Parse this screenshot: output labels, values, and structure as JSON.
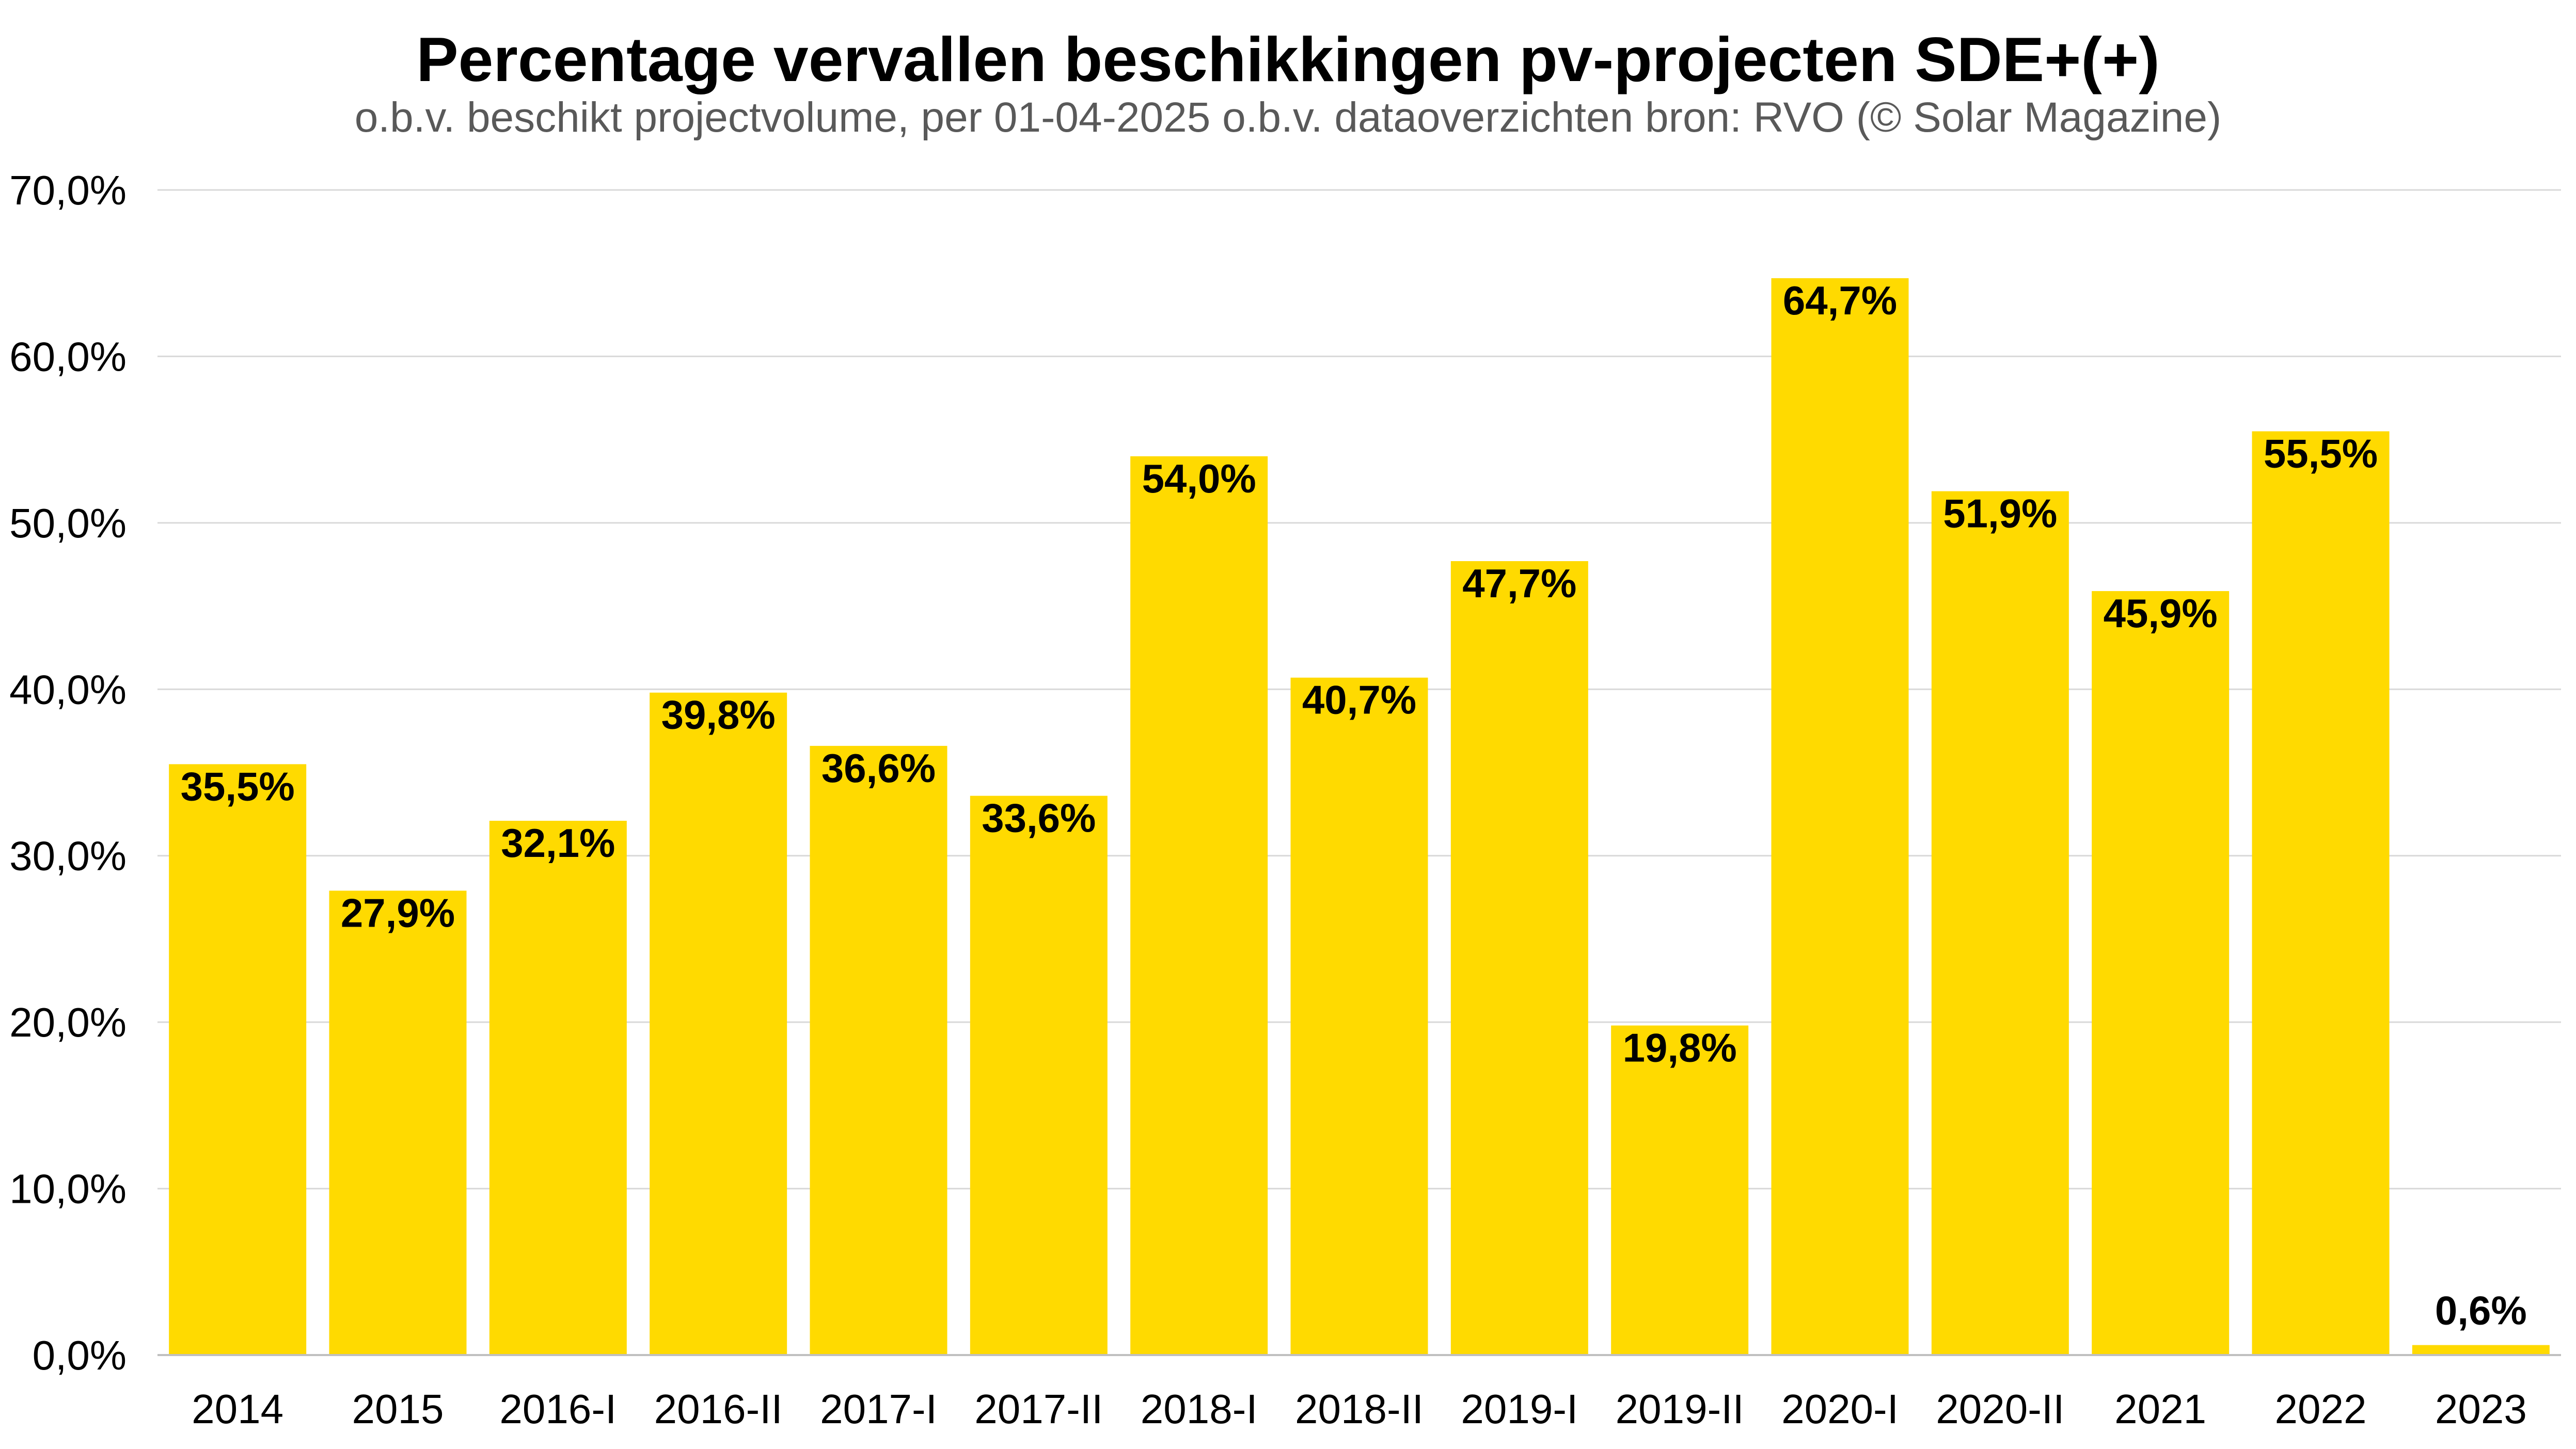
{
  "chart_data": {
    "type": "bar",
    "title": "Percentage vervallen beschikkingen pv-projecten SDE+(+)",
    "subtitle": "o.b.v. beschikt projectvolume, per 01-04-2025 o.b.v. dataoverzichten bron: RVO (© Solar Magazine)",
    "xlabel": "",
    "ylabel": "",
    "categories": [
      "2014",
      "2015",
      "2016-I",
      "2016-II",
      "2017-I",
      "2017-II",
      "2018-I",
      "2018-II",
      "2019-I",
      "2019-II",
      "2020-I",
      "2020-II",
      "2021",
      "2022",
      "2023"
    ],
    "values": [
      35.5,
      27.9,
      32.1,
      39.8,
      36.6,
      33.6,
      54.0,
      40.7,
      47.7,
      19.8,
      64.7,
      51.9,
      45.9,
      55.5,
      0.6
    ],
    "data_labels": [
      "35,5%",
      "27,9%",
      "32,1%",
      "39,8%",
      "36,6%",
      "33,6%",
      "54,0%",
      "40,7%",
      "47,7%",
      "19,8%",
      "64,7%",
      "51,9%",
      "45,9%",
      "55,5%",
      "0,6%"
    ],
    "ylim": [
      0,
      70
    ],
    "yticks": [
      0,
      10,
      20,
      30,
      40,
      50,
      60,
      70
    ],
    "ytick_labels": [
      "0,0%",
      "10,0%",
      "20,0%",
      "30,0%",
      "40,0%",
      "50,0%",
      "60,0%",
      "70,0%"
    ],
    "grid": true,
    "legend": "none",
    "colors": {
      "bar": "#FFDA00",
      "grid": "#D9D9D9",
      "axis": "#BFBFBF",
      "text": "#000000",
      "subtitle": "#595959"
    }
  }
}
